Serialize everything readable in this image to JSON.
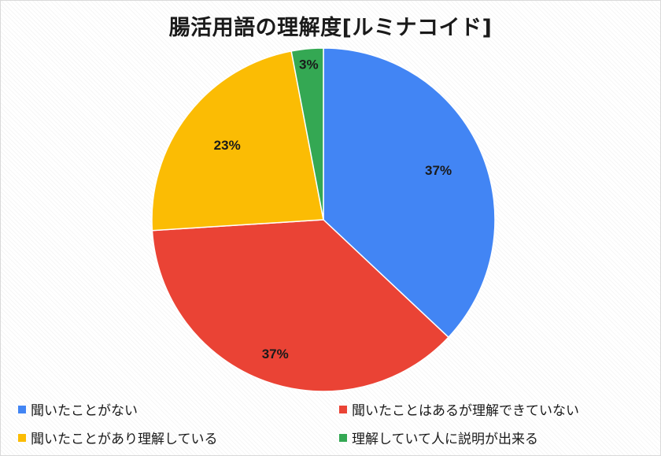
{
  "chart_data": {
    "type": "pie",
    "title": "腸活用語の理解度[ルミナコイド]",
    "categories": [
      "聞いたことがない",
      "聞いたことはあるが理解できていない",
      "聞いたことがあり理解している",
      "理解していて人に説明が出来る"
    ],
    "values": [
      37,
      37,
      23,
      3
    ],
    "labels": [
      "37%",
      "37%",
      "23%",
      "3%"
    ],
    "colors": [
      "#4285f4",
      "#ea4335",
      "#fbbc04",
      "#34a853"
    ],
    "legend_position": "bottom"
  }
}
